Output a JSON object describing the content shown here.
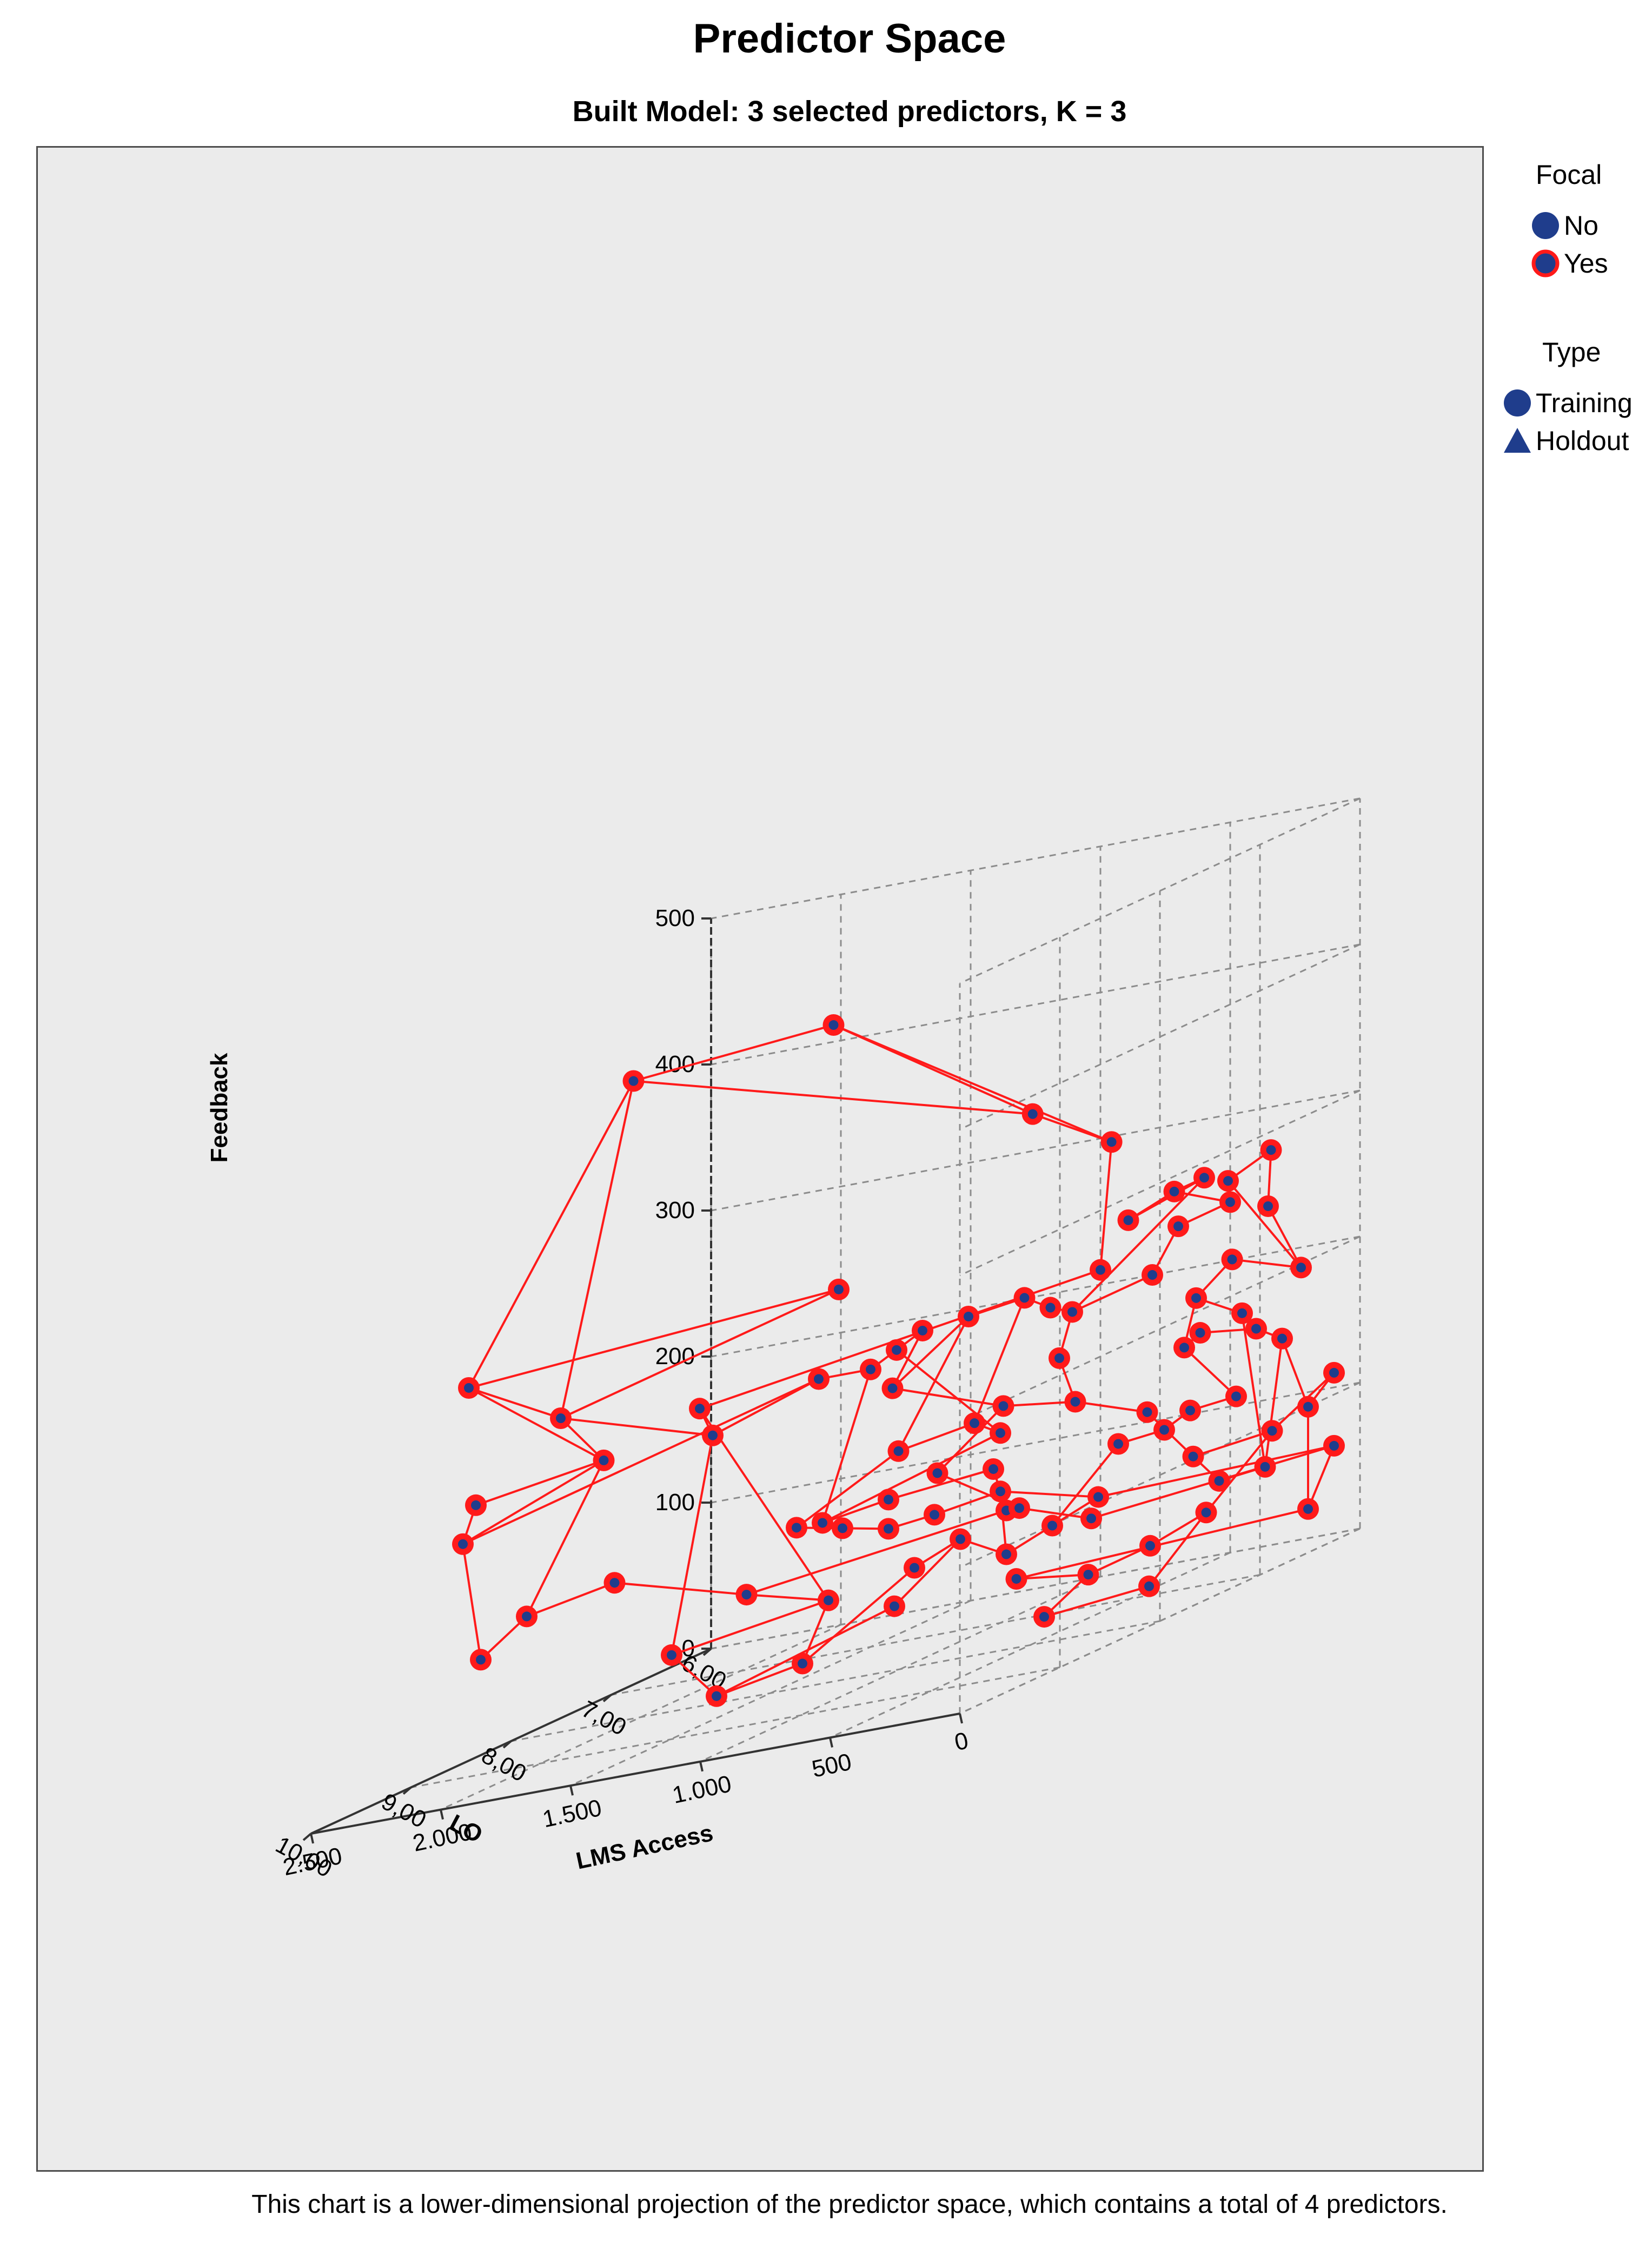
{
  "chart_data": {
    "type": "scatter",
    "subtype": "3d-scatter-with-connecting-lines",
    "title": "Predictor Space",
    "subtitle": "Built Model: 3 selected predictors, K = 3",
    "footnote": "This chart is a lower-dimensional projection of the predictor space, which contains a total of 4 predictors.",
    "axes": {
      "x": {
        "label": "LMS Access",
        "ticks": [
          "0",
          "500",
          "1.000",
          "1.500",
          "2.000",
          "2.500"
        ],
        "range": [
          0,
          2500
        ]
      },
      "y": {
        "label": "LO",
        "ticks": [
          "6,00",
          "7,00",
          "8,00",
          "9,00",
          "10,00"
        ],
        "range": [
          6,
          10
        ]
      },
      "z": {
        "label": "Feedback",
        "ticks": [
          "0",
          "100",
          "200",
          "300",
          "400",
          "500"
        ],
        "range": [
          0,
          500
        ]
      }
    },
    "grid": true,
    "legend": {
      "placement": "right",
      "groups": [
        {
          "title": "Focal",
          "items": [
            {
              "label": "No",
              "symbol": "circle"
            },
            {
              "label": "Yes",
              "symbol": "circle-red-ring"
            }
          ]
        },
        {
          "title": "Type",
          "items": [
            {
              "label": "Training",
              "symbol": "circle"
            },
            {
              "label": "Holdout",
              "symbol": "triangle"
            }
          ]
        }
      ]
    },
    "colors": {
      "point_fill": "#1f3d8c",
      "focal_ring": "#ff1a1a",
      "line": "#ff1a1a",
      "panel": "#ebebeb",
      "grid": "#8c8c8c"
    },
    "points": [
      [
        1450,
        9.5,
        465
      ],
      [
        1450,
        7.5,
        440
      ],
      [
        760,
        7.3,
        350
      ],
      [
        880,
        6.2,
        300
      ],
      [
        2200,
        9.2,
        270
      ],
      [
        1700,
        6.8,
        245
      ],
      [
        2000,
        8.8,
        230
      ],
      [
        1950,
        8.5,
        190
      ],
      [
        2250,
        9.0,
        185
      ],
      [
        2300,
        9.0,
        160
      ],
      [
        1000,
        6.0,
        210
      ],
      [
        1850,
        7.8,
        200
      ],
      [
        1800,
        7.8,
        180
      ],
      [
        1700,
        7.0,
        190
      ],
      [
        1500,
        7.0,
        190
      ],
      [
        1400,
        7.0,
        200
      ],
      [
        1300,
        7.0,
        210
      ],
      [
        1300,
        7.3,
        180
      ],
      [
        1200,
        6.8,
        210
      ],
      [
        1100,
        6.5,
        210
      ],
      [
        1000,
        6.5,
        200
      ],
      [
        800,
        6.8,
        200
      ],
      [
        600,
        6.0,
        260
      ],
      [
        700,
        6.5,
        250
      ],
      [
        600,
        6.3,
        260
      ],
      [
        500,
        6.0,
        240
      ],
      [
        700,
        6.0,
        230
      ],
      [
        800,
        6.0,
        200
      ],
      [
        1200,
        7.5,
        140
      ],
      [
        1100,
        7.0,
        140
      ],
      [
        1000,
        7.0,
        130
      ],
      [
        1300,
        8.0,
        110
      ],
      [
        1200,
        7.6,
        110
      ],
      [
        950,
        7.2,
        110
      ],
      [
        900,
        7.2,
        80
      ],
      [
        1400,
        8.5,
        80
      ],
      [
        1200,
        8.2,
        60
      ],
      [
        1650,
        8.6,
        50
      ],
      [
        1400,
        8.8,
        20
      ],
      [
        1300,
        8.2,
        20
      ],
      [
        1100,
        7.6,
        60
      ],
      [
        1000,
        7.4,
        70
      ],
      [
        900,
        7.2,
        50
      ],
      [
        800,
        7.0,
        60
      ],
      [
        700,
        6.8,
        70
      ],
      [
        1000,
        7.0,
        90
      ],
      [
        1100,
        7.4,
        90
      ],
      [
        1200,
        7.6,
        90
      ],
      [
        1300,
        7.8,
        100
      ],
      [
        1400,
        8.0,
        110
      ],
      [
        700,
        6.6,
        100
      ],
      [
        600,
        6.4,
        100
      ],
      [
        500,
        6.4,
        110
      ],
      [
        400,
        6.2,
        110
      ],
      [
        600,
        6.2,
        150
      ],
      [
        500,
        6.3,
        160
      ],
      [
        400,
        6.0,
        150
      ],
      [
        300,
        6.0,
        140
      ],
      [
        200,
        6.0,
        90
      ],
      [
        100,
        6.0,
        110
      ],
      [
        300,
        6.1,
        80
      ],
      [
        400,
        6.5,
        40
      ],
      [
        500,
        6.8,
        30
      ],
      [
        700,
        6.9,
        20
      ],
      [
        900,
        7.1,
        30
      ],
      [
        200,
        6.0,
        20
      ],
      [
        100,
        6.0,
        60
      ],
      [
        650,
        7.0,
        60
      ],
      [
        850,
        7.2,
        80
      ],
      [
        1050,
        7.5,
        120
      ],
      [
        950,
        7.1,
        150
      ],
      [
        750,
        6.9,
        140
      ],
      [
        550,
        6.7,
        120
      ],
      [
        450,
        6.5,
        80
      ],
      [
        350,
        6.5,
        60
      ],
      [
        250,
        6.3,
        60
      ],
      [
        300,
        6.4,
        170
      ],
      [
        400,
        6.6,
        190
      ],
      [
        300,
        6.5,
        210
      ],
      [
        150,
        6.2,
        190
      ],
      [
        200,
        6.4,
        240
      ],
      [
        150,
        6.5,
        280
      ],
      [
        200,
        6.8,
        270
      ],
      [
        1600,
        9.3,
        120
      ],
      [
        1900,
        9.4,
        110
      ],
      [
        2000,
        9.6,
        90
      ],
      [
        850,
        6.8,
        170
      ],
      [
        1100,
        7.8,
        40
      ],
      [
        600,
        7.6,
        10
      ],
      [
        350,
        7.2,
        10
      ]
    ],
    "edges": [
      [
        0,
        1
      ],
      [
        0,
        2
      ],
      [
        1,
        2
      ],
      [
        1,
        3
      ],
      [
        0,
        4
      ],
      [
        0,
        6
      ],
      [
        4,
        5
      ],
      [
        4,
        6
      ],
      [
        5,
        6
      ],
      [
        4,
        7
      ],
      [
        6,
        7
      ],
      [
        7,
        8
      ],
      [
        8,
        9
      ],
      [
        7,
        9
      ],
      [
        2,
        3
      ],
      [
        3,
        10
      ],
      [
        10,
        11
      ],
      [
        11,
        12
      ],
      [
        12,
        13
      ],
      [
        13,
        14
      ],
      [
        14,
        15
      ],
      [
        15,
        16
      ],
      [
        16,
        17
      ],
      [
        17,
        18
      ],
      [
        18,
        19
      ],
      [
        19,
        20
      ],
      [
        20,
        21
      ],
      [
        21,
        22
      ],
      [
        22,
        23
      ],
      [
        23,
        24
      ],
      [
        24,
        25
      ],
      [
        25,
        26
      ],
      [
        26,
        27
      ],
      [
        27,
        21
      ],
      [
        22,
        24
      ],
      [
        6,
        12
      ],
      [
        9,
        13
      ],
      [
        28,
        29
      ],
      [
        29,
        30
      ],
      [
        30,
        31
      ],
      [
        31,
        32
      ],
      [
        32,
        33
      ],
      [
        33,
        34
      ],
      [
        34,
        35
      ],
      [
        35,
        36
      ],
      [
        36,
        37
      ],
      [
        37,
        38
      ],
      [
        38,
        39
      ],
      [
        39,
        40
      ],
      [
        40,
        41
      ],
      [
        41,
        42
      ],
      [
        42,
        43
      ],
      [
        43,
        44
      ],
      [
        44,
        45
      ],
      [
        45,
        46
      ],
      [
        46,
        47
      ],
      [
        47,
        48
      ],
      [
        48,
        49
      ],
      [
        49,
        28
      ],
      [
        50,
        51
      ],
      [
        51,
        52
      ],
      [
        52,
        53
      ],
      [
        53,
        54
      ],
      [
        54,
        55
      ],
      [
        55,
        56
      ],
      [
        56,
        57
      ],
      [
        57,
        58
      ],
      [
        58,
        59
      ],
      [
        59,
        60
      ],
      [
        60,
        61
      ],
      [
        61,
        62
      ],
      [
        62,
        63
      ],
      [
        63,
        64
      ],
      [
        64,
        65
      ],
      [
        65,
        66
      ],
      [
        66,
        67
      ],
      [
        67,
        68
      ],
      [
        68,
        69
      ],
      [
        69,
        70
      ],
      [
        70,
        71
      ],
      [
        71,
        72
      ],
      [
        72,
        73
      ],
      [
        73,
        74
      ],
      [
        74,
        75
      ],
      [
        75,
        76
      ],
      [
        76,
        77
      ],
      [
        77,
        78
      ],
      [
        78,
        79
      ],
      [
        79,
        80
      ],
      [
        80,
        81
      ],
      [
        81,
        82
      ],
      [
        82,
        79
      ],
      [
        77,
        54
      ],
      [
        83,
        84
      ],
      [
        84,
        85
      ],
      [
        83,
        35
      ],
      [
        84,
        7
      ],
      [
        85,
        9
      ],
      [
        86,
        71
      ],
      [
        86,
        21
      ],
      [
        87,
        41
      ],
      [
        87,
        38
      ],
      [
        88,
        63
      ],
      [
        89,
        61
      ],
      [
        88,
        89
      ],
      [
        19,
        29
      ],
      [
        15,
        30
      ],
      [
        18,
        28
      ],
      [
        48,
        31
      ],
      [
        45,
        42
      ],
      [
        36,
        39
      ],
      [
        44,
        66
      ],
      [
        50,
        43
      ],
      [
        73,
        60
      ],
      [
        57,
        75
      ],
      [
        65,
        58
      ],
      [
        17,
        70
      ],
      [
        14,
        31
      ],
      [
        12,
        37
      ],
      [
        11,
        36
      ]
    ]
  }
}
